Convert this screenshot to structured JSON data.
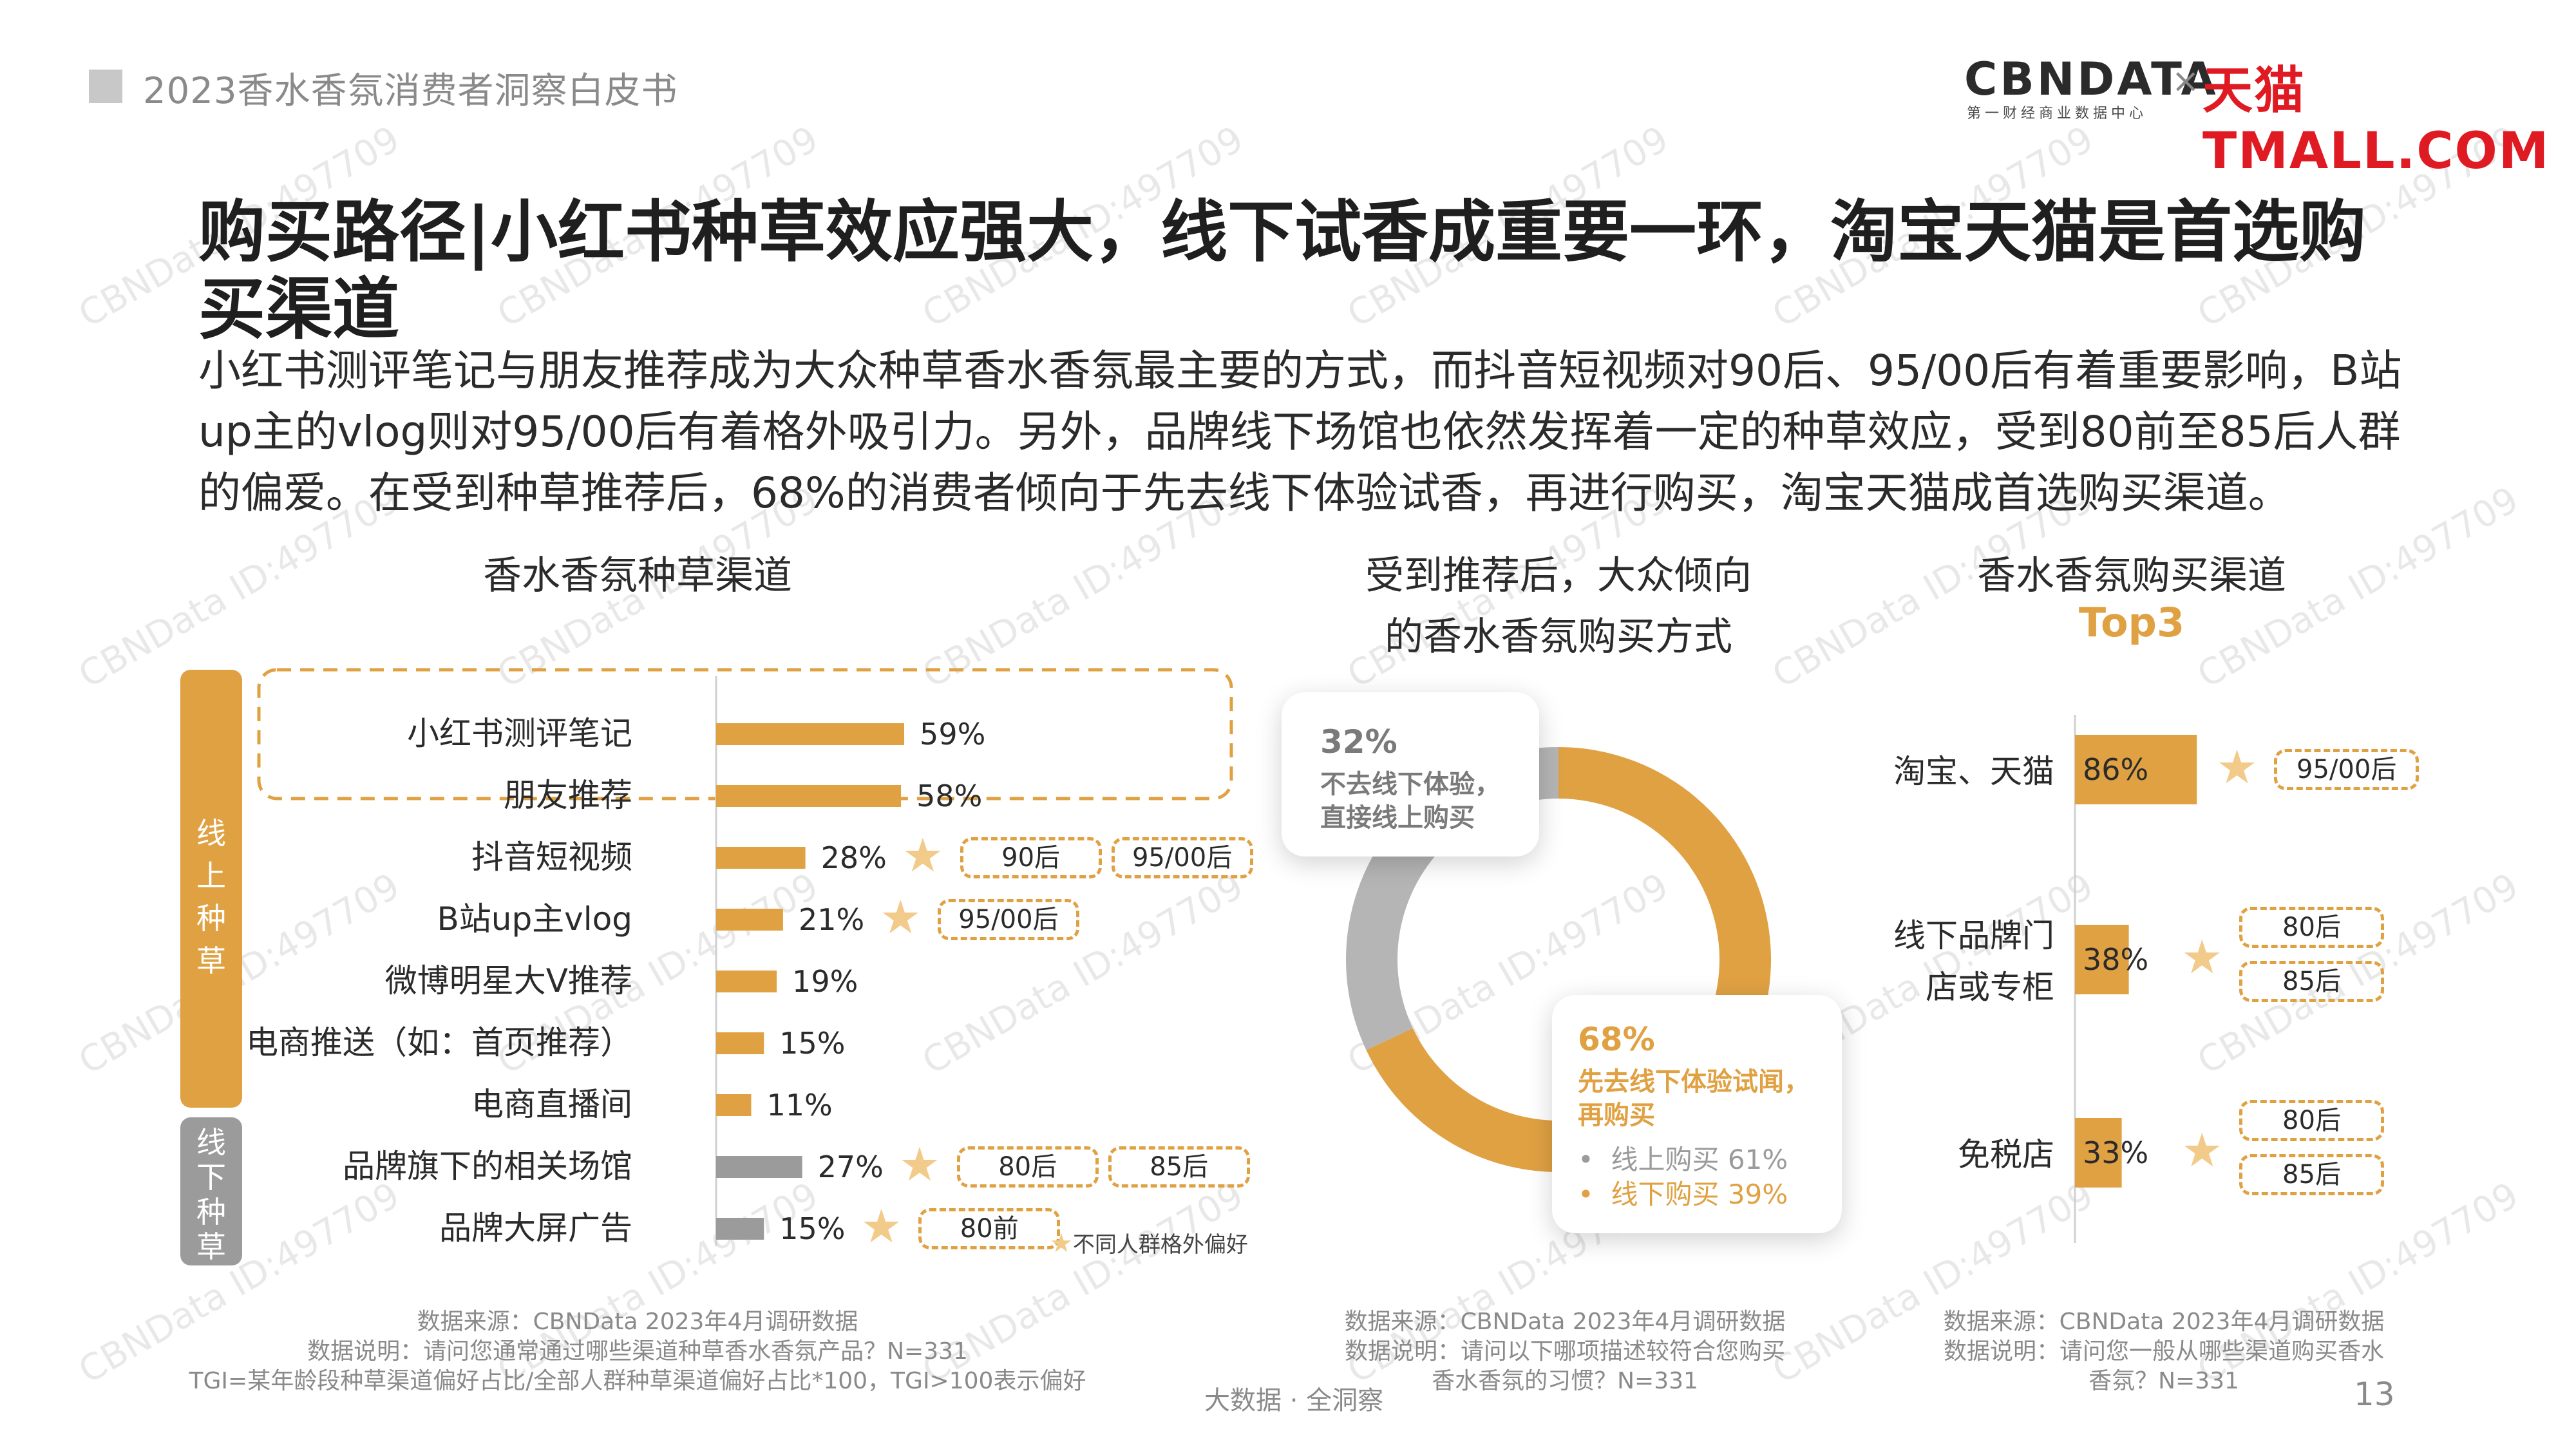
{
  "header": {
    "report_title": "2023香水香氛消费者洞察白皮书",
    "logo_cbndata": "CBNDATA",
    "logo_cbndata_sub": "第一财经商业数据中心",
    "logo_times": "×",
    "logo_tmall": "天猫TMALL.COM"
  },
  "main_title": "购买路径|小红书种草效应强大，线下试香成重要一环，淘宝天猫是首选购买渠道",
  "summary": "小红书测评笔记与朋友推荐成为大众种草香水香氛最主要的方式，而抖音短视频对90后、95/00后有着重要影响，B站up主的vlog则对95/00后有着格外吸引力。另外，品牌线下场馆也依然发挥着一定的种草效应，受到80前至85后人群的偏爱。在受到种草推荐后，68%的消费者倾向于先去线下体验试香，再进行购买，淘宝天猫成首选购买渠道。",
  "watermark": "CBNData ID:497709",
  "left": {
    "title": "香水香氛种草渠道",
    "group_online": "线上种草",
    "group_offline": "线下种草",
    "legend_note": "不同人群格外偏好",
    "source_line1": "数据来源：CBNData 2023年4月调研数据",
    "source_line2": "数据说明：请问您通常通过哪些渠道种草香水香氛产品？N=331",
    "source_line3": "TGI=某年龄段种草渠道偏好占比/全部人群种草渠道偏好占比*100，TGI>100表示偏好"
  },
  "middle": {
    "title_line1": "受到推荐后，大众倾向",
    "title_line2": "的香水香氛购买方式",
    "callout_top_pct": "32%",
    "callout_top_line1": "不去线下体验，",
    "callout_top_line2": "直接线上购买",
    "callout_bottom_pct": "68%",
    "callout_bottom_line1": "先去线下体验试闻，",
    "callout_bottom_line2": "再购买",
    "sub_online": "线上购买 61%",
    "sub_offline": "线下购买 39%",
    "source_line1": "数据来源：CBNData 2023年4月调研数据",
    "source_line2": "数据说明：请问以下哪项描述较符合您购买",
    "source_line3": "香水香氛的习惯？N=331"
  },
  "right": {
    "title": "香水香氛购买渠道",
    "title_top": "Top3",
    "label_1": "淘宝、天猫",
    "label_2a": "线下品牌门",
    "label_2b": "店或专柜",
    "label_3": "免税店",
    "source_line1": "数据来源：CBNData 2023年4月调研数据",
    "source_line2": "数据说明：请问您一般从哪些渠道购买香水",
    "source_line3": "香氛？N=331"
  },
  "footer": {
    "tagline": "大数据 · 全洞察",
    "page_number": "13"
  },
  "colors": {
    "accent": "#e0a143",
    "gray": "#9b9b9b",
    "light_gray": "#b5b5b5",
    "star": "#f2ca8a"
  },
  "chart_data": [
    {
      "type": "bar",
      "title": "香水香氛种草渠道",
      "categories": [
        "小红书测评笔记",
        "朋友推荐",
        "抖音短视频",
        "B站up主vlog",
        "微博明星大V推荐",
        "电商推送（如：首页推荐）",
        "电商直播间",
        "品牌旗下的相关场馆",
        "品牌大屏广告"
      ],
      "values": [
        59,
        58,
        28,
        21,
        19,
        15,
        11,
        27,
        15
      ],
      "value_labels": [
        "59%",
        "58%",
        "28%",
        "21%",
        "19%",
        "15%",
        "11%",
        "27%",
        "15%"
      ],
      "groups": [
        "online",
        "online",
        "online",
        "online",
        "online",
        "online",
        "online",
        "offline",
        "offline"
      ],
      "preferred_segments": [
        [],
        [],
        [
          "90后",
          "95/00后"
        ],
        [
          "95/00后"
        ],
        [],
        [],
        [],
        [
          "80后",
          "85后"
        ],
        [
          "80前"
        ]
      ],
      "unit": "%"
    },
    {
      "type": "pie",
      "title": "受到推荐后，大众倾向的香水香氛购买方式",
      "labels": [
        "先去线下体验试闻，再购买",
        "不去线下体验，直接线上购买"
      ],
      "values": [
        68,
        32
      ],
      "sub_breakdown": {
        "线上购买": 61,
        "线下购买": 39
      }
    },
    {
      "type": "bar",
      "title": "香水香氛购买渠道Top3",
      "categories": [
        "淘宝、天猫",
        "线下品牌门店或专柜",
        "免税店"
      ],
      "values": [
        86,
        38,
        33
      ],
      "value_labels": [
        "86%",
        "38%",
        "33%"
      ],
      "preferred_segments": [
        [
          "95/00后"
        ],
        [
          "80后",
          "85后"
        ],
        [
          "80后",
          "85后"
        ]
      ],
      "unit": "%"
    }
  ]
}
